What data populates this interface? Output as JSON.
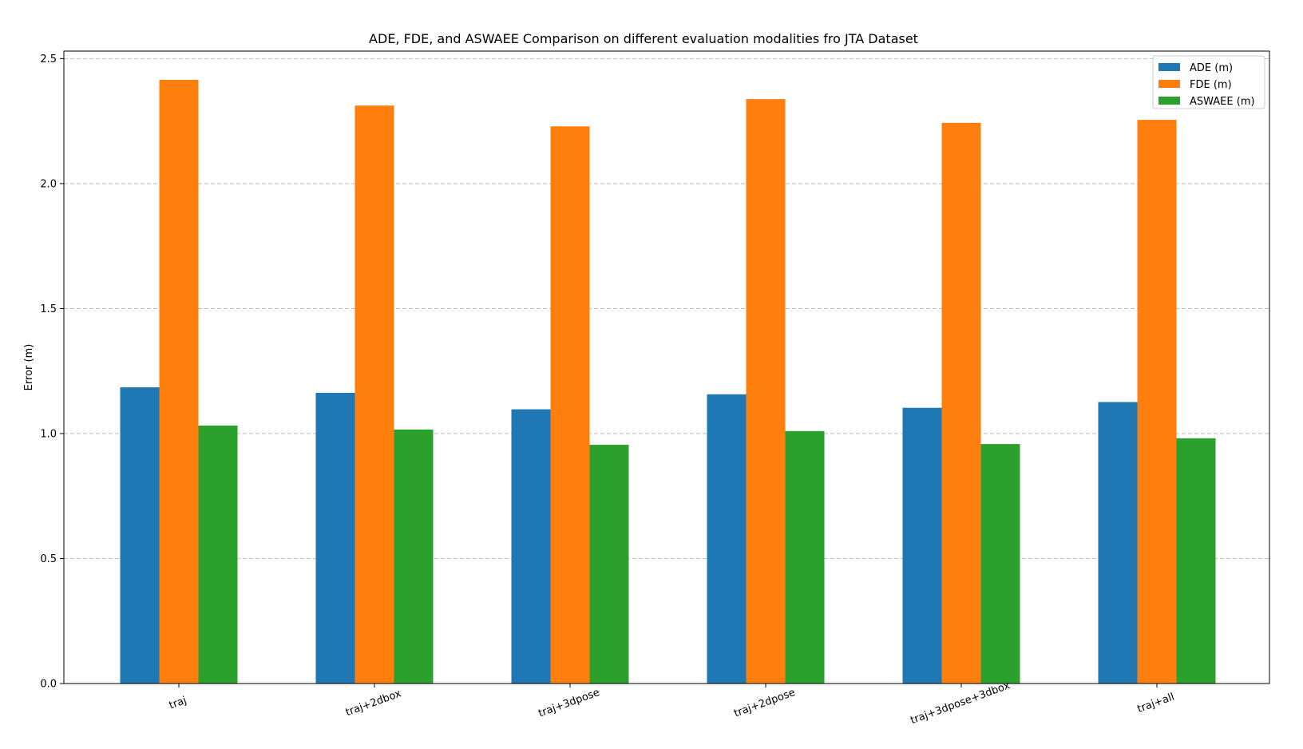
{
  "chart_data": {
    "type": "bar",
    "title": "ADE, FDE, and ASWAEE Comparison on different evaluation modalities fro JTA Dataset",
    "xlabel": "",
    "ylabel": "Error (m)",
    "ylim": [
      0,
      2.53
    ],
    "yticks": [
      "0.0",
      "0.5",
      "1.0",
      "1.5",
      "2.0",
      "2.5"
    ],
    "grid": "y-dashed",
    "legend_position": "top-right",
    "categories": [
      "traj",
      "traj+2dbox",
      "traj+3dpose",
      "traj+2dpose",
      "traj+3dpose+3dbox",
      "traj+all"
    ],
    "series": [
      {
        "name": "ADE (m)",
        "color": "#1f77b4",
        "values": [
          1.185,
          1.163,
          1.097,
          1.157,
          1.103,
          1.126
        ]
      },
      {
        "name": "FDE (m)",
        "color": "#ff7f0e",
        "values": [
          2.415,
          2.312,
          2.229,
          2.338,
          2.243,
          2.255
        ]
      },
      {
        "name": "ASWAEE (m)",
        "color": "#2ca02c",
        "values": [
          1.032,
          1.016,
          0.955,
          1.01,
          0.958,
          0.981
        ]
      }
    ]
  }
}
